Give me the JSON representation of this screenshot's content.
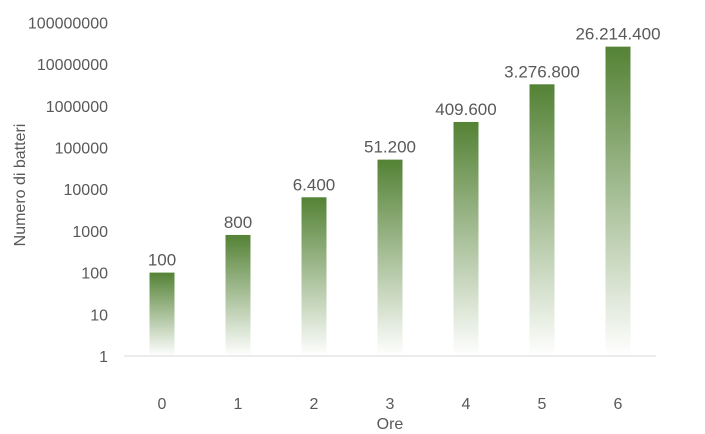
{
  "chart_data": {
    "type": "bar",
    "title": "",
    "xlabel": "Ore",
    "ylabel": "Numero di batteri",
    "y_scale": "log10",
    "ylim": [
      1,
      100000000
    ],
    "grid": false,
    "legend": "none",
    "categories": [
      "0",
      "1",
      "2",
      "3",
      "4",
      "5",
      "6"
    ],
    "values": [
      100,
      800,
      6400,
      51200,
      409600,
      3276800,
      26214400
    ],
    "data_labels": [
      "100",
      "800",
      "6.400",
      "51.200",
      "409.600",
      "3.276.800",
      "26.214.400"
    ],
    "y_tick_labels": [
      "1",
      "10",
      "100",
      "1000",
      "10000",
      "100000",
      "1000000",
      "10000000",
      "100000000"
    ],
    "bar_color_top": "#548235",
    "bar_color_bottom": "#ffffff",
    "axis_color": "#d9d9d9",
    "text_color": "#595959"
  }
}
